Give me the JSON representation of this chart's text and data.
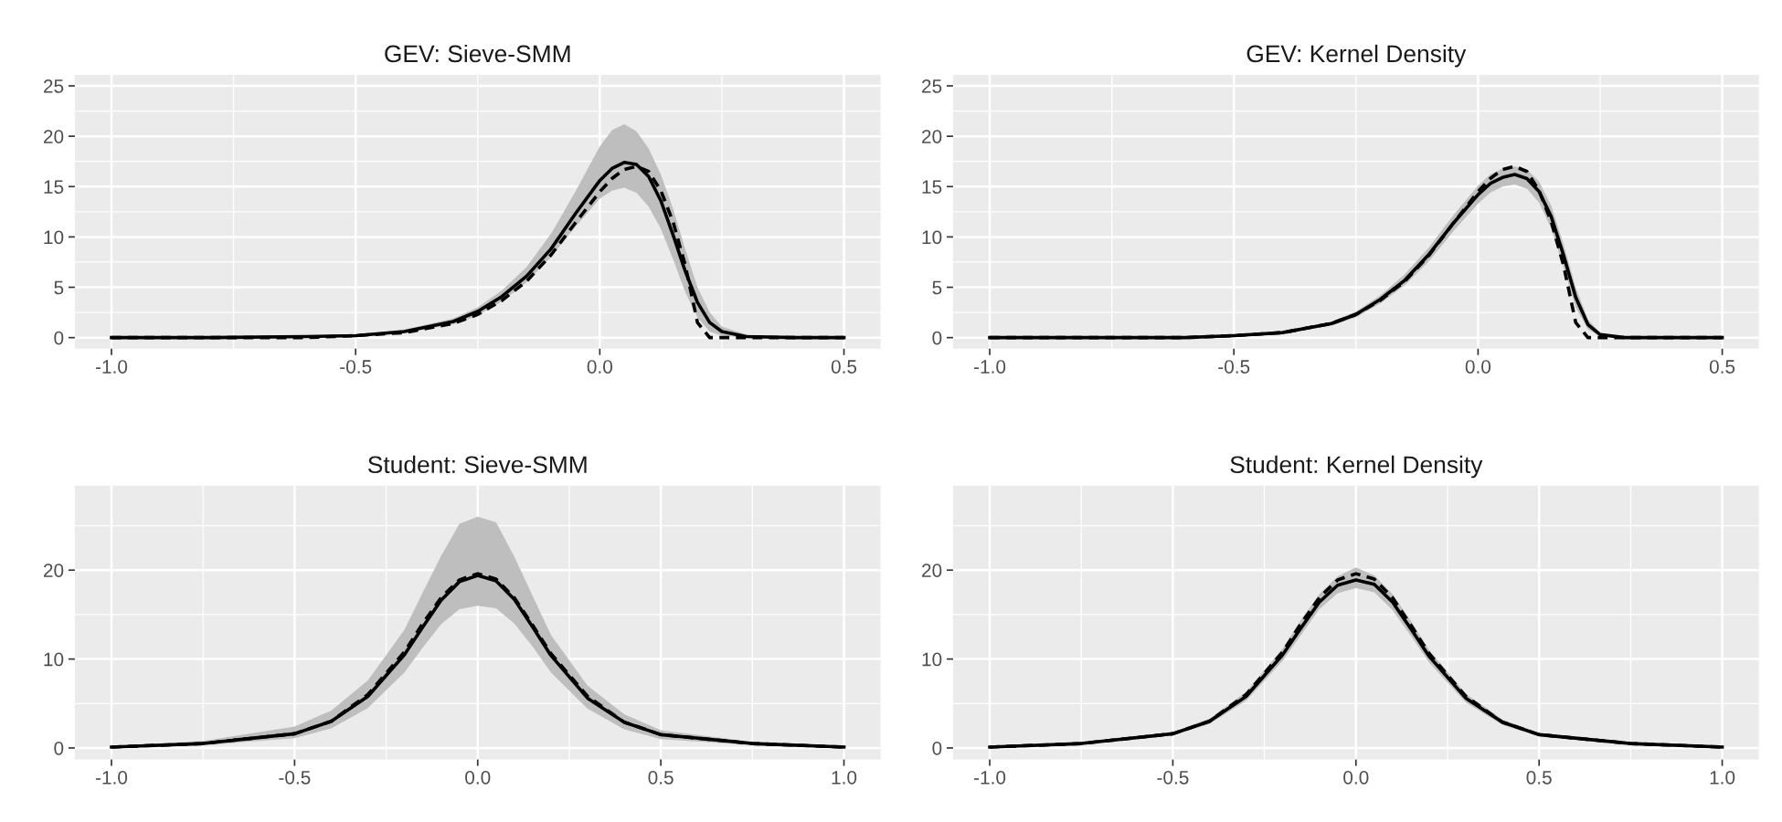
{
  "chart_data": [
    {
      "type": "line",
      "title": "GEV: Sieve-SMM",
      "xlim": [
        -1.075,
        0.575
      ],
      "xticks": [
        {
          "value": -1,
          "label": "-1.0"
        },
        {
          "value": -0.5,
          "label": "-0.5"
        },
        {
          "value": 0,
          "label": "0.0"
        },
        {
          "value": 0.5,
          "label": "0.5"
        }
      ],
      "ylim": [
        -1.1,
        26.1
      ],
      "yticks": [
        0,
        5,
        10,
        15,
        20,
        25
      ],
      "grid": true,
      "x": [
        -1,
        -0.8,
        -0.6,
        -0.5,
        -0.4,
        -0.3,
        -0.25,
        -0.2,
        -0.15,
        -0.1,
        -0.05,
        0,
        0.025,
        0.05,
        0.075,
        0.1,
        0.125,
        0.15,
        0.175,
        0.2,
        0.225,
        0.25,
        0.3,
        0.4,
        0.5
      ],
      "series": [
        {
          "color": "#000000",
          "line_style": "solid",
          "values": [
            0,
            0,
            0.1,
            0.2,
            0.6,
            1.6,
            2.6,
            4.1,
            6.1,
            8.8,
            12.3,
            15.6,
            16.8,
            17.4,
            17.2,
            16.0,
            13.6,
            10.2,
            6.6,
            3.5,
            1.5,
            0.6,
            0.1,
            0,
            0
          ],
          "lower": [
            0,
            0,
            0,
            0.2,
            0.5,
            1.3,
            2.2,
            3.6,
            5.5,
            8,
            11,
            13.8,
            14.6,
            14.9,
            14.4,
            13,
            10.8,
            7.8,
            4.5,
            2,
            0.6,
            0.2,
            0,
            0,
            0
          ],
          "upper": [
            0,
            0,
            0.1,
            0.3,
            0.8,
            1.9,
            3.0,
            4.7,
            7,
            10.3,
            14.5,
            19,
            20.6,
            21.2,
            20.5,
            18.8,
            16.2,
            12.8,
            8.8,
            5.0,
            2.5,
            1.1,
            0.3,
            0,
            0
          ]
        },
        {
          "color": "#000000",
          "line_style": "dashed",
          "values": [
            0,
            0,
            0,
            0.2,
            0.5,
            1.4,
            2.3,
            3.7,
            5.6,
            8.2,
            11.4,
            14.5,
            15.8,
            16.7,
            17.0,
            16.5,
            14.6,
            11.5,
            7.2,
            1.5,
            0,
            0,
            0,
            0,
            0
          ]
        }
      ]
    },
    {
      "type": "line",
      "title": "GEV: Kernel Density",
      "xlim": [
        -1.075,
        0.575
      ],
      "xticks": [
        {
          "value": -1,
          "label": "-1.0"
        },
        {
          "value": -0.5,
          "label": "-0.5"
        },
        {
          "value": 0,
          "label": "0.0"
        },
        {
          "value": 0.5,
          "label": "0.5"
        }
      ],
      "ylim": [
        -1.1,
        26.1
      ],
      "yticks": [
        0,
        5,
        10,
        15,
        20,
        25
      ],
      "grid": true,
      "x": [
        -1,
        -0.8,
        -0.6,
        -0.5,
        -0.4,
        -0.3,
        -0.25,
        -0.2,
        -0.15,
        -0.1,
        -0.05,
        0,
        0.025,
        0.05,
        0.075,
        0.1,
        0.125,
        0.15,
        0.175,
        0.2,
        0.225,
        0.25,
        0.3,
        0.4,
        0.5
      ],
      "series": [
        {
          "color": "#000000",
          "line_style": "solid",
          "values": [
            0,
            0,
            0,
            0.2,
            0.5,
            1.4,
            2.3,
            3.8,
            5.7,
            8.3,
            11.4,
            14.2,
            15.3,
            15.9,
            16.2,
            15.8,
            14.5,
            12,
            8.2,
            4,
            1.3,
            0.3,
            0,
            0,
            0
          ],
          "lower": [
            0,
            0,
            0,
            0.1,
            0.4,
            1.2,
            2,
            3.4,
            5.2,
            7.6,
            10.6,
            13.3,
            14.4,
            15,
            15.2,
            14.8,
            13.4,
            10.8,
            7,
            3,
            0.8,
            0.1,
            0,
            0,
            0
          ],
          "upper": [
            0,
            0,
            0.1,
            0.2,
            0.6,
            1.6,
            2.6,
            4.2,
            6.3,
            9,
            12.2,
            15.1,
            16.2,
            16.8,
            17,
            16.7,
            15.5,
            13.1,
            9.3,
            5,
            1.8,
            0.5,
            0,
            0,
            0
          ]
        },
        {
          "color": "#000000",
          "line_style": "dashed",
          "values": [
            0,
            0,
            0,
            0.2,
            0.5,
            1.4,
            2.3,
            3.7,
            5.6,
            8.2,
            11.4,
            14.5,
            15.8,
            16.7,
            17.0,
            16.5,
            14.6,
            11.5,
            7.2,
            1.5,
            0,
            0,
            0,
            0,
            0
          ]
        }
      ]
    },
    {
      "type": "line",
      "title": "Student: Sieve-SMM",
      "xlim": [
        -1.1,
        1.1
      ],
      "xticks": [
        {
          "value": -1,
          "label": "-1.0"
        },
        {
          "value": -0.5,
          "label": "-0.5"
        },
        {
          "value": 0,
          "label": "0.0"
        },
        {
          "value": 0.5,
          "label": "0.5"
        },
        {
          "value": 1,
          "label": "1.0"
        }
      ],
      "ylim": [
        -1.3,
        29.5
      ],
      "yticks": [
        0,
        10,
        20
      ],
      "grid": true,
      "x": [
        -1,
        -0.75,
        -0.5,
        -0.4,
        -0.3,
        -0.2,
        -0.15,
        -0.1,
        -0.05,
        0,
        0.05,
        0.1,
        0.15,
        0.2,
        0.3,
        0.4,
        0.5,
        0.75,
        1
      ],
      "series": [
        {
          "color": "#000000",
          "line_style": "solid",
          "values": [
            0.1,
            0.5,
            1.6,
            3,
            5.8,
            10.5,
            13.6,
            16.6,
            18.7,
            19.4,
            18.8,
            16.7,
            13.6,
            10.4,
            5.6,
            2.9,
            1.5,
            0.5,
            0.1
          ],
          "lower": [
            0,
            0.3,
            1.1,
            2.2,
            4.5,
            8.5,
            11.3,
            13.9,
            15.6,
            16,
            15.7,
            14,
            11.4,
            8.5,
            4.4,
            2.1,
            1,
            0.3,
            0
          ],
          "upper": [
            0.2,
            0.8,
            2.4,
            4.2,
            7.6,
            13.3,
            17.5,
            21.6,
            25.2,
            26,
            25.4,
            21.5,
            17.1,
            12.7,
            7,
            3.8,
            2,
            0.7,
            0.2
          ]
        },
        {
          "color": "#000000",
          "line_style": "dashed",
          "values": [
            0.1,
            0.5,
            1.6,
            3,
            6,
            10.8,
            14,
            16.9,
            18.9,
            19.6,
            19,
            16.9,
            13.8,
            10.6,
            5.8,
            2.9,
            1.5,
            0.5,
            0.1
          ]
        }
      ]
    },
    {
      "type": "line",
      "title": "Student: Kernel Density",
      "xlim": [
        -1.1,
        1.1
      ],
      "xticks": [
        {
          "value": -1,
          "label": "-1.0"
        },
        {
          "value": -0.5,
          "label": "-0.5"
        },
        {
          "value": 0,
          "label": "0.0"
        },
        {
          "value": 0.5,
          "label": "0.5"
        },
        {
          "value": 1,
          "label": "1.0"
        }
      ],
      "ylim": [
        -1.3,
        29.5
      ],
      "yticks": [
        0,
        10,
        20
      ],
      "grid": true,
      "x": [
        -1,
        -0.75,
        -0.5,
        -0.4,
        -0.3,
        -0.2,
        -0.15,
        -0.1,
        -0.05,
        0,
        0.05,
        0.1,
        0.15,
        0.2,
        0.3,
        0.4,
        0.5,
        0.75,
        1
      ],
      "series": [
        {
          "color": "#000000",
          "line_style": "solid",
          "values": [
            0.1,
            0.5,
            1.6,
            3,
            5.8,
            10.5,
            13.5,
            16.4,
            18.3,
            18.9,
            18.4,
            16.4,
            13.4,
            10.3,
            5.6,
            2.9,
            1.5,
            0.5,
            0.1
          ],
          "lower": [
            0,
            0.4,
            1.4,
            2.7,
            5.3,
            9.8,
            12.7,
            15.6,
            17.4,
            18,
            17.5,
            15.5,
            12.6,
            9.6,
            5.1,
            2.6,
            1.3,
            0.4,
            0
          ],
          "upper": [
            0.2,
            0.6,
            1.8,
            3.3,
            6.3,
            11.2,
            14.4,
            17.3,
            19.3,
            20.3,
            19.4,
            17.3,
            14.3,
            11,
            6.1,
            3.2,
            1.7,
            0.6,
            0.2
          ]
        },
        {
          "color": "#000000",
          "line_style": "dashed",
          "values": [
            0.1,
            0.5,
            1.6,
            3,
            6,
            10.8,
            14,
            16.9,
            18.9,
            19.6,
            19,
            16.9,
            13.8,
            10.6,
            5.8,
            2.9,
            1.5,
            0.5,
            0.1
          ]
        }
      ]
    }
  ]
}
